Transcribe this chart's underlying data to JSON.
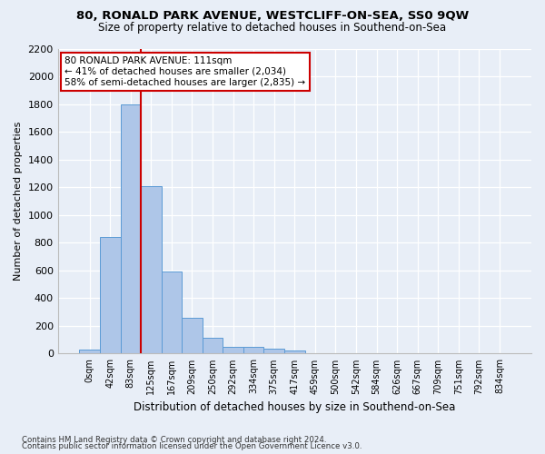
{
  "title1": "80, RONALD PARK AVENUE, WESTCLIFF-ON-SEA, SS0 9QW",
  "title2": "Size of property relative to detached houses in Southend-on-Sea",
  "xlabel": "Distribution of detached houses by size in Southend-on-Sea",
  "ylabel": "Number of detached properties",
  "footnote1": "Contains HM Land Registry data © Crown copyright and database right 2024.",
  "footnote2": "Contains public sector information licensed under the Open Government Licence v3.0.",
  "bin_labels": [
    "0sqm",
    "42sqm",
    "83sqm",
    "125sqm",
    "167sqm",
    "209sqm",
    "250sqm",
    "292sqm",
    "334sqm",
    "375sqm",
    "417sqm",
    "459sqm",
    "500sqm",
    "542sqm",
    "584sqm",
    "626sqm",
    "667sqm",
    "709sqm",
    "751sqm",
    "792sqm",
    "834sqm"
  ],
  "bar_values": [
    30,
    840,
    1800,
    1210,
    590,
    260,
    115,
    50,
    50,
    35,
    20,
    0,
    0,
    0,
    0,
    0,
    0,
    0,
    0,
    0,
    0
  ],
  "bar_color": "#aec6e8",
  "bar_edge_color": "#5b9bd5",
  "red_line_bin_index": 2,
  "annotation_title": "80 RONALD PARK AVENUE: 111sqm",
  "annotation_line2": "← 41% of detached houses are smaller (2,034)",
  "annotation_line3": "58% of semi-detached houses are larger (2,835) →",
  "ylim": [
    0,
    2200
  ],
  "yticks": [
    0,
    200,
    400,
    600,
    800,
    1000,
    1200,
    1400,
    1600,
    1800,
    2000,
    2200
  ],
  "background_color": "#e8eef7",
  "grid_color": "#ffffff",
  "annotation_box_color": "#ffffff",
  "annotation_box_edge": "#cc0000",
  "red_line_color": "#cc0000"
}
